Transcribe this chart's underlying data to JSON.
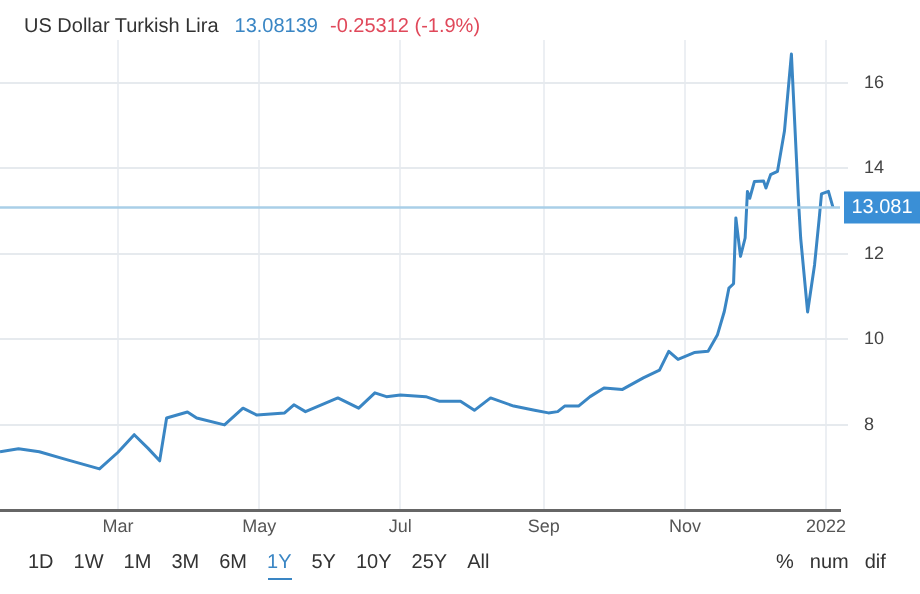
{
  "chart_data": {
    "type": "line",
    "title": "US Dollar Turkish Lira",
    "annotations": [
      "13.08139",
      "-0.25312 (-1.9%)",
      "1D",
      "1W",
      "1M",
      "3M",
      "6M",
      "1Y",
      "5Y",
      "10Y",
      "25Y",
      "All",
      "%",
      "num",
      "dif"
    ],
    "x": [
      "2021-01-09",
      "2021-01-17",
      "2021-01-26",
      "2021-02-06",
      "2021-02-21",
      "2021-03-01",
      "2021-03-08",
      "2021-03-14",
      "2021-03-19",
      "2021-03-22",
      "2021-03-31",
      "2021-04-04",
      "2021-04-16",
      "2021-04-24",
      "2021-04-30",
      "2021-05-12",
      "2021-05-16",
      "2021-05-21",
      "2021-06-04",
      "2021-06-13",
      "2021-06-20",
      "2021-06-25",
      "2021-07-01",
      "2021-07-12",
      "2021-07-18",
      "2021-07-27",
      "2021-08-02",
      "2021-08-09",
      "2021-08-19",
      "2021-08-28",
      "2021-09-03",
      "2021-09-07",
      "2021-09-10",
      "2021-09-16",
      "2021-09-21",
      "2021-09-27",
      "2021-10-05",
      "2021-10-14",
      "2021-10-21",
      "2021-10-25",
      "2021-10-29",
      "2021-11-05",
      "2021-11-11",
      "2021-11-15",
      "2021-11-18",
      "2021-11-20",
      "2021-11-22",
      "2021-11-23",
      "2021-11-25",
      "2021-11-27",
      "2021-11-28",
      "2021-11-29",
      "2021-12-01",
      "2021-12-05",
      "2021-12-06",
      "2021-12-08",
      "2021-12-11",
      "2021-12-14",
      "2021-12-17",
      "2021-12-20",
      "2021-12-21",
      "2021-12-24",
      "2021-12-27",
      "2021-12-29",
      "2021-12-30",
      "2022-01-02",
      "2022-01-04"
    ],
    "series": [
      {
        "color": "#3a86c4",
        "values": [
          7.37,
          7.44,
          7.37,
          7.2,
          6.97,
          7.36,
          7.77,
          7.45,
          7.16,
          8.16,
          8.3,
          8.16,
          8.0,
          8.39,
          8.23,
          8.28,
          8.47,
          8.31,
          8.63,
          8.39,
          8.75,
          8.66,
          8.7,
          8.66,
          8.55,
          8.55,
          8.34,
          8.63,
          8.44,
          8.34,
          8.28,
          8.31,
          8.44,
          8.44,
          8.66,
          8.86,
          8.83,
          9.1,
          9.28,
          9.72,
          9.53,
          9.69,
          9.72,
          10.1,
          10.65,
          11.2,
          11.3,
          12.84,
          11.94,
          12.37,
          13.46,
          13.3,
          13.69,
          13.7,
          13.54,
          13.85,
          13.93,
          14.87,
          16.67,
          13.3,
          12.37,
          10.64,
          11.74,
          12.82,
          13.4,
          13.46,
          13.08
        ]
      }
    ],
    "xlim": [
      "2021-01-09",
      "2022-01-07"
    ],
    "xticks": [
      {
        "value": "2021-03-01",
        "label": "Mar"
      },
      {
        "value": "2021-05-01",
        "label": "May"
      },
      {
        "value": "2021-07-01",
        "label": "Jul"
      },
      {
        "value": "2021-09-01",
        "label": "Sep"
      },
      {
        "value": "2021-11-01",
        "label": "Nov"
      },
      {
        "value": "2022-01-01",
        "label": "2022"
      }
    ],
    "ylim": [
      6,
      17
    ],
    "yticks": [
      8,
      10,
      12,
      14,
      16
    ],
    "ref_lines": [
      {
        "axis": "y",
        "value": 13.081,
        "label": "13.081",
        "color": "#a9cfe8"
      }
    ],
    "grid": true,
    "legend": false,
    "marker": "none",
    "line_style": "solid"
  }
}
